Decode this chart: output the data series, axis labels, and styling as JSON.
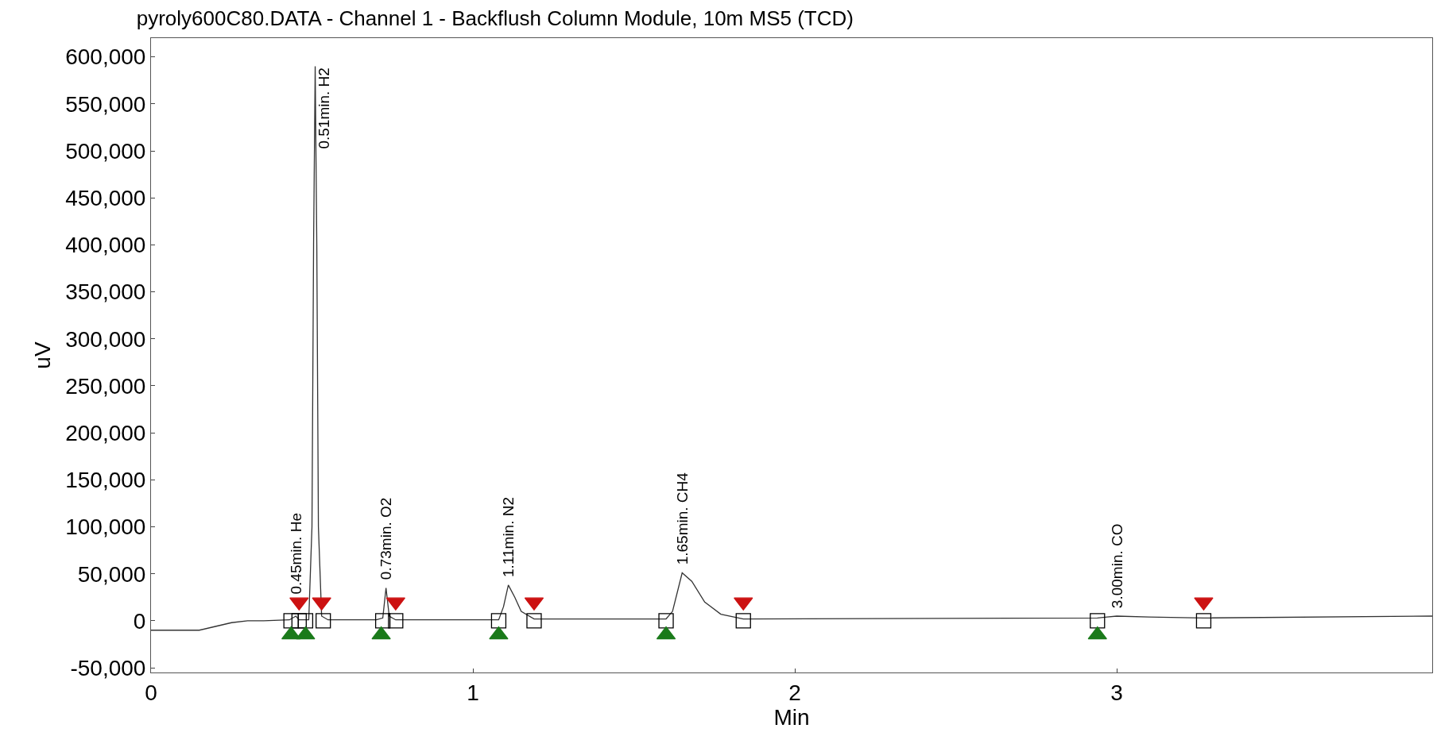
{
  "chart_data": {
    "type": "line",
    "title": "pyroly600C80.DATA - Channel 1 - Backflush Column Module, 10m MS5 (TCD)",
    "xlabel": "Min",
    "ylabel": "uV",
    "xlim": [
      0,
      3.98
    ],
    "xticks": [
      0,
      1,
      2,
      3
    ],
    "ylim": [
      -55000,
      620000
    ],
    "yticks": [
      {
        "value": -50000,
        "label": "-50,000"
      },
      0,
      {
        "value": 50000,
        "label": "50,000"
      },
      {
        "value": 100000,
        "label": "100,000"
      },
      {
        "value": 150000,
        "label": "150,000"
      },
      {
        "value": 200000,
        "label": "200,000"
      },
      {
        "value": 250000,
        "label": "250,000"
      },
      {
        "value": 300000,
        "label": "300,000"
      },
      {
        "value": 350000,
        "label": "350,000"
      },
      {
        "value": 400000,
        "label": "400,000"
      },
      {
        "value": 450000,
        "label": "450,000"
      },
      {
        "value": 500000,
        "label": "500,000"
      },
      {
        "value": 550000,
        "label": "550,000"
      },
      {
        "value": 600000,
        "label": "600,000"
      }
    ],
    "grid": false,
    "series": [
      {
        "color": "#333333",
        "marker": "none",
        "line_style": "solid",
        "x": [
          0,
          0.15,
          0.2,
          0.25,
          0.3,
          0.35,
          0.43,
          0.45,
          0.46,
          0.49,
          0.5,
          0.505,
          0.51,
          0.515,
          0.52,
          0.53,
          0.55,
          0.7,
          0.72,
          0.73,
          0.74,
          0.76,
          1.08,
          1.095,
          1.11,
          1.13,
          1.15,
          1.19,
          1.6,
          1.62,
          1.65,
          1.68,
          1.72,
          1.77,
          1.84,
          2.94,
          2.97,
          3.0,
          3.1,
          3.27,
          3.98
        ],
        "values": [
          -10000,
          -10000,
          -6000,
          -2000,
          0,
          0,
          1000,
          5000,
          1000,
          1000,
          100000,
          400000,
          590000,
          400000,
          100000,
          5000,
          1000,
          1000,
          3000,
          35000,
          5000,
          1000,
          1000,
          15000,
          38000,
          25000,
          10000,
          2000,
          2000,
          10000,
          51000,
          42000,
          20000,
          7000,
          2000,
          3000,
          4000,
          5000,
          4000,
          3000,
          5000
        ]
      },
      {
        "type": "scatter",
        "color": "#000000",
        "marker": "square",
        "x": [
          0.435,
          0.46,
          0.48,
          0.535,
          0.72,
          0.76,
          1.08,
          1.19,
          1.6,
          1.84,
          2.94,
          3.27
        ],
        "values": [
          0,
          0,
          0,
          0,
          0,
          0,
          0,
          0,
          0,
          0,
          0,
          0
        ]
      },
      {
        "type": "scatter",
        "color": "#1a7a1a",
        "marker": "triangle",
        "x": [
          0.435,
          0.48,
          0.715,
          1.08,
          1.6,
          2.94
        ],
        "values": [
          -15000,
          -15000,
          -15000,
          -15000,
          -15000,
          -15000
        ]
      },
      {
        "type": "scatter",
        "color": "#cc1111",
        "marker": "triangle-down",
        "x": [
          0.46,
          0.53,
          0.76,
          1.19,
          1.84,
          3.27
        ],
        "values": [
          20000,
          20000,
          20000,
          20000,
          20000,
          20000
        ]
      }
    ],
    "annotations": [
      {
        "text": "0.45min. He",
        "x": 0.45,
        "y": 20000
      },
      {
        "text": "0.51min. H2",
        "x": 0.51,
        "y": 590000
      },
      {
        "text": "0.73min. O2",
        "x": 0.73,
        "y": 35000
      },
      {
        "text": "1.11min. N2",
        "x": 1.11,
        "y": 38000
      },
      {
        "text": "1.65min. CH4",
        "x": 1.65,
        "y": 51000
      },
      {
        "text": "3.00min. CO",
        "x": 3.0,
        "y": 4500
      }
    ]
  }
}
